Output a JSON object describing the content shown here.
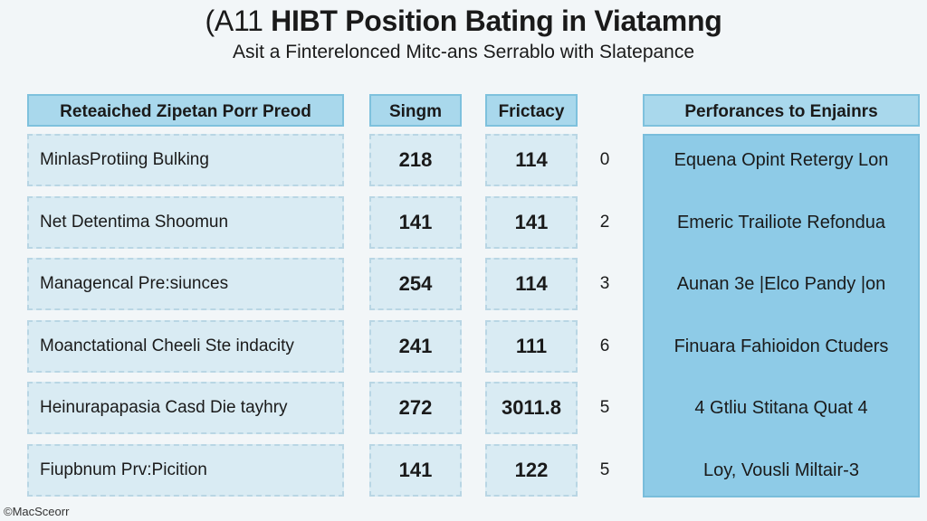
{
  "chart_data": {
    "type": "table",
    "title_prefix": "(A11",
    "title": "HIBT Position Bating in Viatamng",
    "subtitle": "Asit a Finterelonced Mitc-ans Serrablo with Slatepance",
    "columns": [
      "Reteaiched Zipetan Porr Preod",
      "Singm",
      "Frictacy",
      "",
      "Perforances to Enjainrs"
    ],
    "rows": [
      {
        "label": "MinlasProtiing Bulking",
        "singm": "218",
        "frictacy": "114",
        "rank": "0",
        "performance": "Equena Opint Retergy Lon"
      },
      {
        "label": "Net Detentima Shoomun",
        "singm": "141",
        "frictacy": "141",
        "rank": "2",
        "performance": "Emeric Trailiote Refondua"
      },
      {
        "label": "Managencal Pre:siunces",
        "singm": "254",
        "frictacy": "114",
        "rank": "3",
        "performance": "Aunan 3e |Elco Pandy |on"
      },
      {
        "label": "Moanctational Cheeli Ste indacity",
        "singm": "241",
        "frictacy": "111",
        "rank": "6",
        "performance": "Finuara Fahioidon Ctuders"
      },
      {
        "label": "Heinurapapasia Casd Die tayhry",
        "singm": "272",
        "frictacy": "3011.8",
        "rank": "5",
        "performance": "4 Gtliu Stitana Quat 4"
      },
      {
        "label": "Fiupbnum Prv:Picition",
        "singm": "141",
        "frictacy": "122",
        "rank": "5",
        "performance": "Loy, Vousli Miltair-3"
      }
    ],
    "credit": "©MacSceorr"
  }
}
